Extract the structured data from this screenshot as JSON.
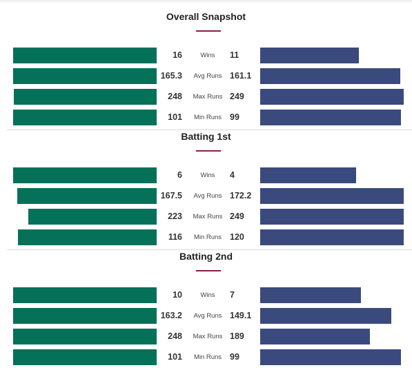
{
  "colors": {
    "left_bar": "#057158",
    "right_bar": "#3b4a7d",
    "accent": "#8b1e3f"
  },
  "chart_data": [
    {
      "type": "bar",
      "title": "Overall Snapshot",
      "categories": [
        "Wins",
        "Avg Runs",
        "Max Runs",
        "Min Runs"
      ],
      "series": [
        {
          "values": [
            16,
            165.3,
            248,
            101
          ]
        },
        {
          "values": [
            11,
            161.1,
            249,
            99
          ]
        }
      ]
    },
    {
      "type": "bar",
      "title": "Batting 1st",
      "categories": [
        "Wins",
        "Avg Runs",
        "Max Runs",
        "Min Runs"
      ],
      "series": [
        {
          "values": [
            6,
            167.5,
            223,
            116
          ]
        },
        {
          "values": [
            4,
            172.2,
            249,
            120
          ]
        }
      ]
    },
    {
      "type": "bar",
      "title": "Batting 2nd",
      "categories": [
        "Wins",
        "Avg Runs",
        "Max Runs",
        "Min Runs"
      ],
      "series": [
        {
          "values": [
            10,
            163.2,
            248,
            101
          ]
        },
        {
          "values": [
            7,
            149.1,
            189,
            99
          ]
        }
      ]
    }
  ]
}
